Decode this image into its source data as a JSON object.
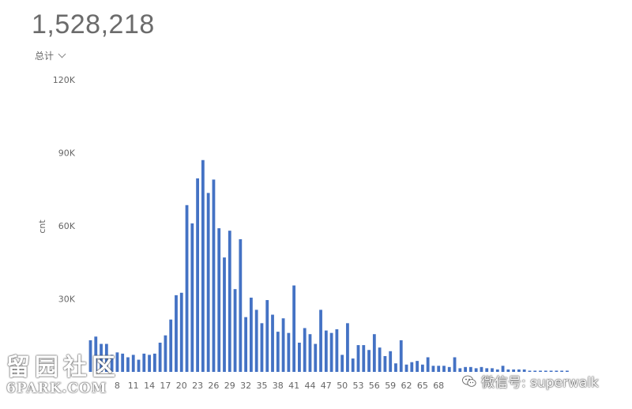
{
  "header": {
    "total": "1,528,218",
    "aggregate_label": "总计"
  },
  "watermarks": {
    "left_cn": "留园社区",
    "left_en": "6PARK.COM",
    "right": "微信号: superwalk"
  },
  "colors": {
    "bar": "#4472c4",
    "axis_text": "#666666",
    "watermark": "#ffffff"
  },
  "chart_data": {
    "type": "bar",
    "title": "",
    "xlabel": "",
    "ylabel": "cnt",
    "ylim": [
      0,
      120000
    ],
    "yticks": [
      30000,
      60000,
      90000,
      120000
    ],
    "ytick_labels": [
      "30K",
      "60K",
      "90K",
      "120K"
    ],
    "x_tick_labels": [
      {
        "x": 8,
        "label": "8"
      },
      {
        "x": 11,
        "label": "11"
      },
      {
        "x": 14,
        "label": "14"
      },
      {
        "x": 17,
        "label": "17"
      },
      {
        "x": 20,
        "label": "20"
      },
      {
        "x": 23,
        "label": "23"
      },
      {
        "x": 26,
        "label": "26"
      },
      {
        "x": 29,
        "label": "29"
      },
      {
        "x": 32,
        "label": "32"
      },
      {
        "x": 35,
        "label": "35"
      },
      {
        "x": 38,
        "label": "38"
      },
      {
        "x": 41,
        "label": "41"
      },
      {
        "x": 44,
        "label": "44"
      },
      {
        "x": 47,
        "label": "47"
      },
      {
        "x": 50,
        "label": "50"
      },
      {
        "x": 53,
        "label": "53"
      },
      {
        "x": 56,
        "label": "56"
      },
      {
        "x": 59,
        "label": "59"
      },
      {
        "x": 62,
        "label": "62"
      },
      {
        "x": 65,
        "label": "65"
      },
      {
        "x": 68,
        "label": "68"
      }
    ],
    "x": [
      3,
      4,
      5,
      6,
      7,
      8,
      9,
      10,
      11,
      12,
      13,
      14,
      15,
      16,
      17,
      18,
      19,
      20,
      21,
      22,
      23,
      24,
      25,
      26,
      27,
      28,
      29,
      30,
      31,
      32,
      33,
      34,
      35,
      36,
      37,
      38,
      39,
      40,
      41,
      42,
      43,
      44,
      45,
      46,
      47,
      48,
      49,
      50,
      51,
      52,
      53,
      54,
      55,
      56,
      57,
      58,
      59,
      60,
      61,
      62,
      63,
      64,
      65,
      66,
      67,
      68,
      69,
      70,
      71,
      72,
      73,
      74,
      75,
      76,
      77,
      78,
      79,
      80,
      81,
      82,
      83,
      84,
      85,
      86,
      87,
      88,
      89,
      90,
      91,
      92
    ],
    "values": [
      13000,
      14500,
      11500,
      11500,
      7000,
      8000,
      7500,
      6000,
      7000,
      5000,
      7500,
      7000,
      7500,
      12000,
      15000,
      21500,
      31500,
      32500,
      68500,
      61000,
      79500,
      87000,
      73500,
      79000,
      59000,
      47000,
      58000,
      34000,
      54500,
      22500,
      30500,
      25500,
      20000,
      29500,
      23500,
      16500,
      22000,
      16000,
      35500,
      12000,
      18000,
      15500,
      11500,
      25500,
      17000,
      16000,
      17500,
      7000,
      20000,
      5500,
      11000,
      11000,
      9000,
      15500,
      10000,
      6500,
      8500,
      3500,
      13000,
      3000,
      4000,
      4500,
      3000,
      6000,
      2500,
      2500,
      2500,
      2000,
      6000,
      1500,
      2000,
      2000,
      1500,
      2000,
      1500,
      1500,
      1000,
      2500,
      1000,
      1000,
      1000,
      1000,
      500,
      500,
      500,
      500,
      500,
      500,
      500,
      500
    ]
  }
}
